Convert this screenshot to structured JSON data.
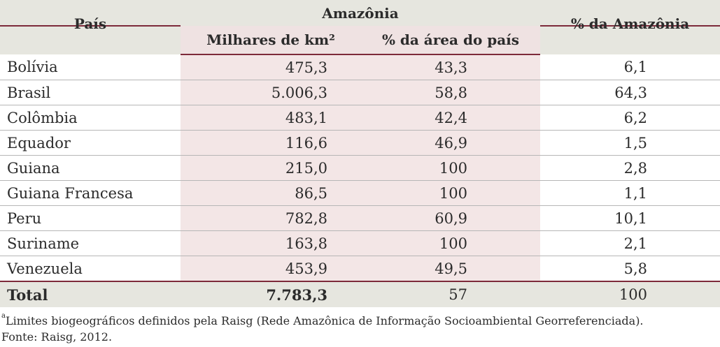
{
  "table": {
    "header": {
      "pais": "País",
      "amazonia": "Amazônia",
      "milhares": "Milhares de km²",
      "pct_area_pais": "% da área do país",
      "pct_amazonia": "% da Amazônia"
    },
    "rows": [
      {
        "pais": "Bolívia",
        "milhares": "475,3",
        "pct_area_pais": "43,3",
        "pct_amazonia": "6,1"
      },
      {
        "pais": "Brasil",
        "milhares": "5.006,3",
        "pct_area_pais": "58,8",
        "pct_amazonia": "64,3"
      },
      {
        "pais": "Colômbia",
        "milhares": "483,1",
        "pct_area_pais": "42,4",
        "pct_amazonia": "6,2"
      },
      {
        "pais": "Equador",
        "milhares": "116,6",
        "pct_area_pais": "46,9",
        "pct_amazonia": "1,5"
      },
      {
        "pais": "Guiana",
        "milhares": "215,0",
        "pct_area_pais": "100",
        "pct_amazonia": "2,8"
      },
      {
        "pais": "Guiana Francesa",
        "milhares": "86,5",
        "pct_area_pais": "100",
        "pct_amazonia": "1,1"
      },
      {
        "pais": "Peru",
        "milhares": "782,8",
        "pct_area_pais": "60,9",
        "pct_amazonia": "10,1"
      },
      {
        "pais": "Suriname",
        "milhares": "163,8",
        "pct_area_pais": "100",
        "pct_amazonia": "2,1"
      },
      {
        "pais": "Venezuela",
        "milhares": "453,9",
        "pct_area_pais": "49,5",
        "pct_amazonia": "5,8"
      }
    ],
    "total": {
      "pais": "Total",
      "milhares": "7.783,3",
      "pct_area_pais": "57",
      "pct_amazonia": "100"
    }
  },
  "notes": {
    "footnote_marker": "a",
    "footnote": "Limites biogeográficos definidos pela Raisg (Rede Amazônica de Informação Socioambiental Georreferenciada).",
    "source": "Fonte: Raisg, 2012."
  }
}
